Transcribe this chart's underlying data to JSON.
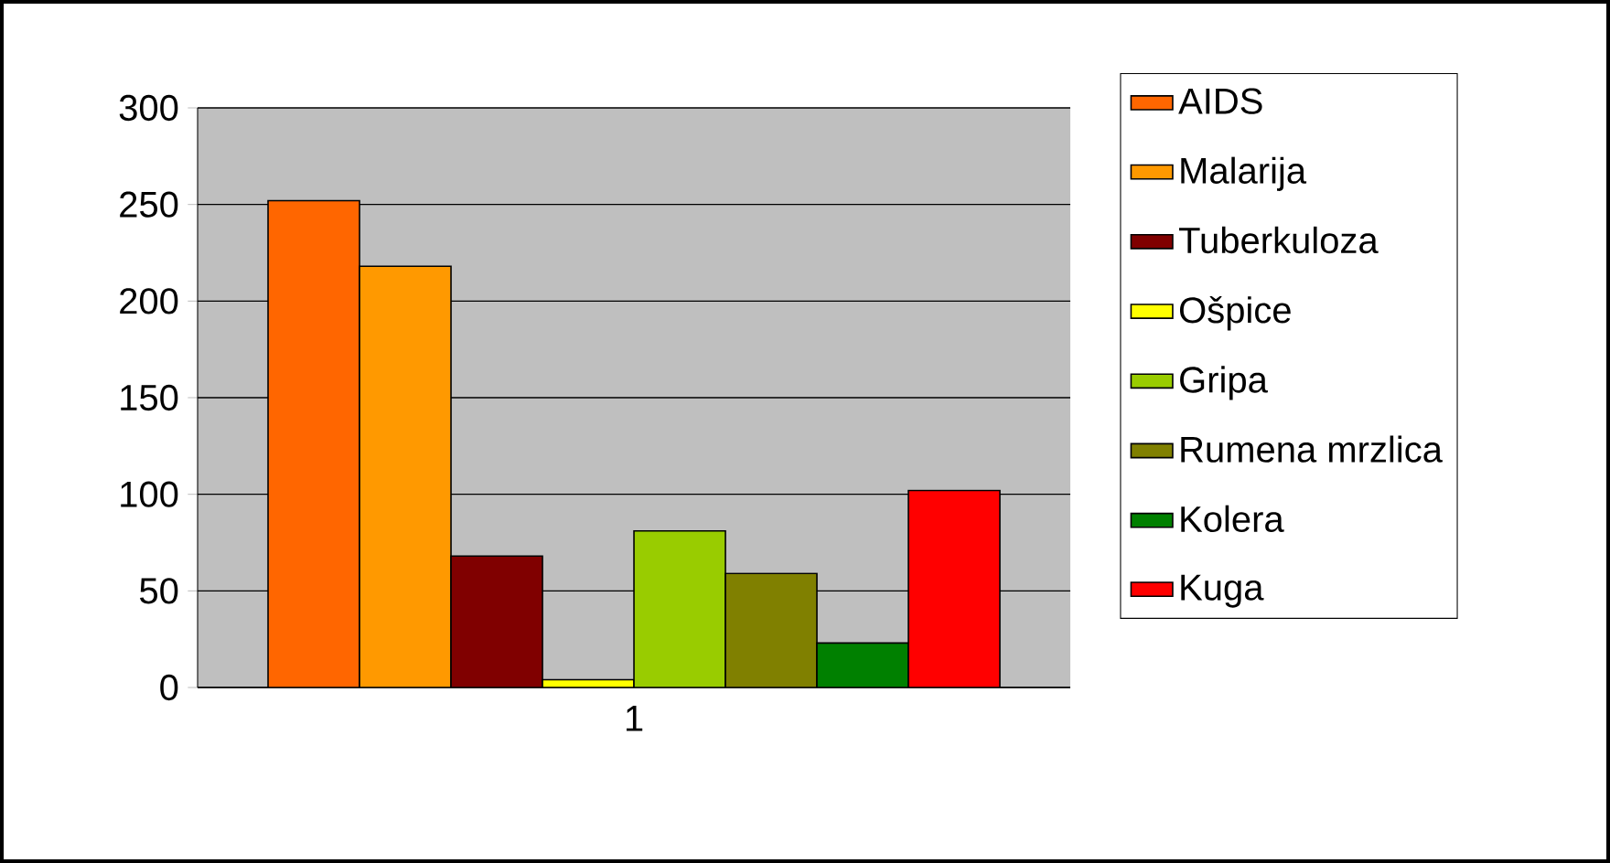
{
  "chart_data": {
    "type": "bar",
    "categories": [
      "1"
    ],
    "series": [
      {
        "name": "AIDS",
        "color": "#ff6600",
        "values": [
          252
        ]
      },
      {
        "name": "Malarija",
        "color": "#ff9900",
        "values": [
          218
        ]
      },
      {
        "name": "Tuberkuloza",
        "color": "#800000",
        "values": [
          68
        ]
      },
      {
        "name": "Ošpice",
        "color": "#ffff00",
        "values": [
          4
        ]
      },
      {
        "name": "Gripa",
        "color": "#99cc00",
        "values": [
          81
        ]
      },
      {
        "name": "Rumena mrzlica",
        "color": "#808000",
        "values": [
          59
        ]
      },
      {
        "name": "Kolera",
        "color": "#008000",
        "values": [
          23
        ]
      },
      {
        "name": "Kuga",
        "color": "#ff0000",
        "values": [
          102
        ]
      }
    ],
    "ylim": [
      0,
      300
    ],
    "yticks": [
      0,
      50,
      100,
      150,
      200,
      250,
      300
    ],
    "grid": "y",
    "legend": "right"
  }
}
